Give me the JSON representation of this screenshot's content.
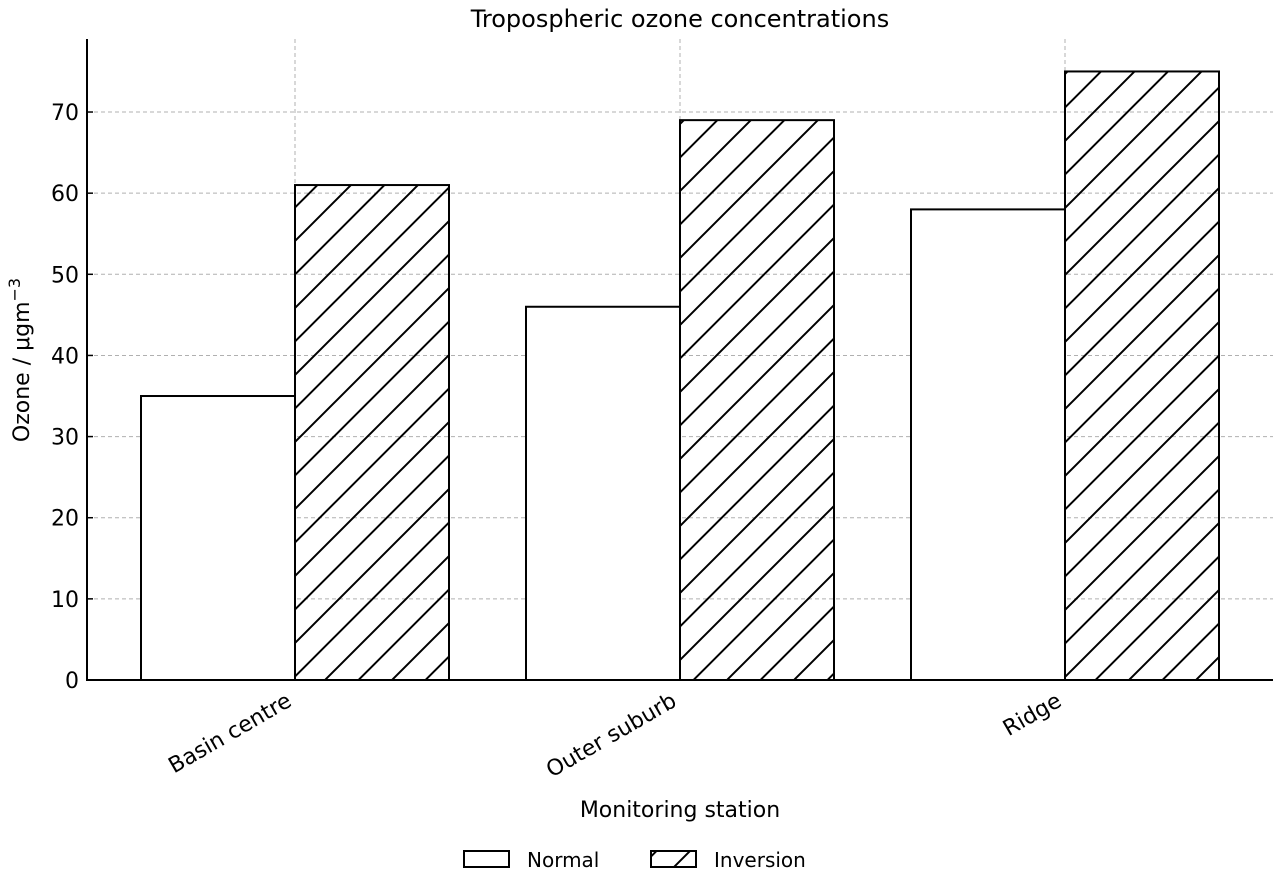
{
  "chart_data": {
    "type": "bar",
    "title": "Tropospheric ozone concentrations",
    "xlabel": "Monitoring station",
    "ylabel": "Ozone / μgm",
    "ylabel_superscript": "−3",
    "categories": [
      "Basin centre",
      "Outer suburb",
      "Ridge"
    ],
    "series": [
      {
        "name": "Normal",
        "values": [
          35,
          46,
          58
        ],
        "fill": "none"
      },
      {
        "name": "Inversion",
        "values": [
          61,
          69,
          75
        ],
        "fill": "diagonal-hatch"
      }
    ],
    "ylim": [
      0,
      79
    ],
    "yticks": [
      0,
      10,
      20,
      30,
      40,
      50,
      60,
      70
    ],
    "grid": true,
    "legend_position": "bottom-center",
    "colors": {
      "bar_edge": "#000000",
      "bar_fill": "#ffffff",
      "grid": "#b0b0b0",
      "axis": "#000000"
    }
  }
}
